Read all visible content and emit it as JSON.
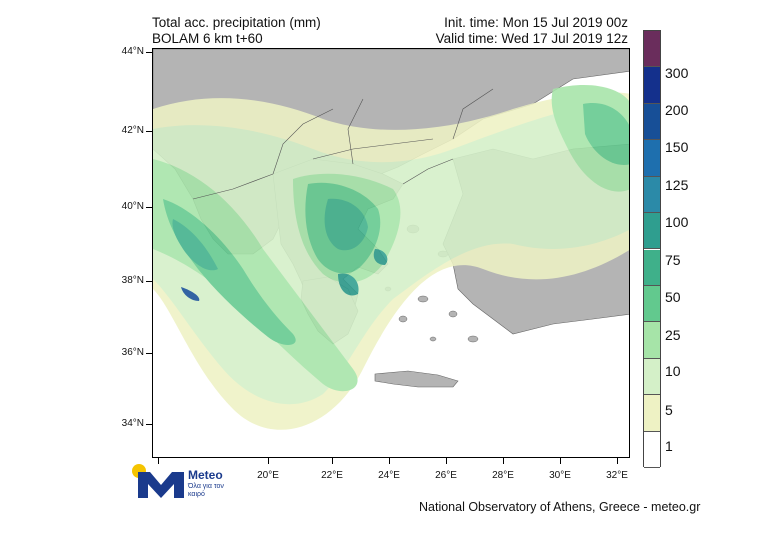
{
  "header": {
    "title_line1": "Total acc. precipitation (mm)",
    "title_line2": "BOLAM 6 km t+60",
    "init_time": "Init. time: Mon 15 Jul 2019 00z",
    "valid_time": "Valid time: Wed 17 Jul 2019 12z"
  },
  "axes": {
    "lat_labels": [
      "44°N",
      "42°N",
      "40°N",
      "38°N",
      "36°N",
      "34°N"
    ],
    "lon_labels": [
      "20°E",
      "22°E",
      "24°E",
      "26°E",
      "28°E",
      "30°E",
      "32°E"
    ]
  },
  "colorbar": {
    "levels": [
      "1",
      "5",
      "10",
      "25",
      "50",
      "75",
      "100",
      "125",
      "150",
      "200",
      "300"
    ],
    "colors": [
      "#ffffff",
      "#eef2c4",
      "#d4f0c8",
      "#a6e4a8",
      "#62c98e",
      "#3fb08a",
      "#2f9e8f",
      "#2b8aa8",
      "#1e6fae",
      "#174f97",
      "#14308c",
      "#6a2d5c"
    ]
  },
  "logo": {
    "name": "Meteo",
    "tagline": "Όλα για τον καιρό"
  },
  "footer": {
    "credit": "National Observatory of Athens, Greece - meteo.gr"
  },
  "colors": {
    "land": "#b4b4b4",
    "sea": "#ffffff",
    "border": "#555555"
  }
}
